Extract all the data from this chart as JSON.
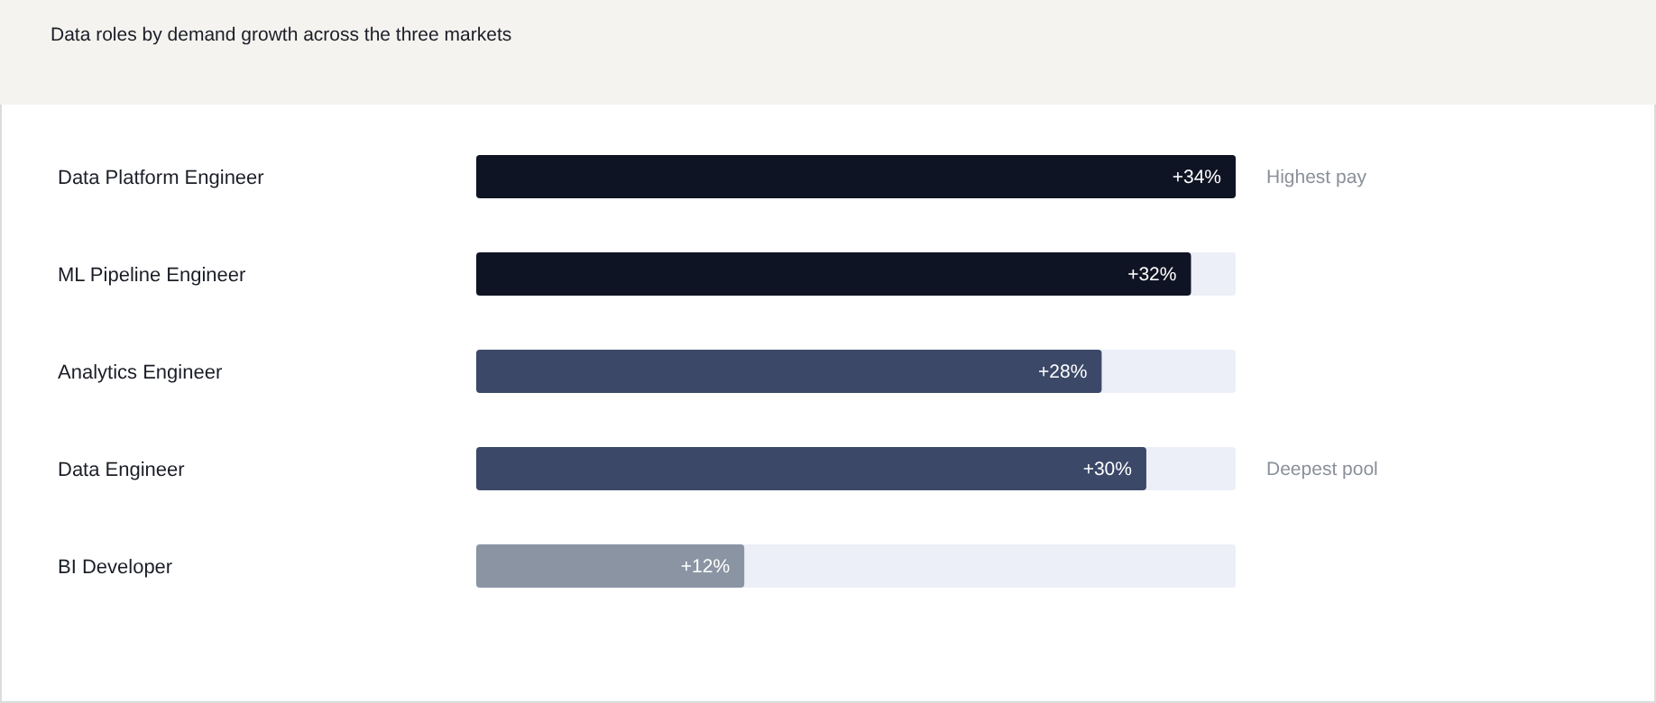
{
  "chart_data": {
    "type": "bar",
    "orientation": "horizontal",
    "title": "Data roles by demand growth across the three markets",
    "categories": [
      "Data Platform Engineer",
      "ML Pipeline Engineer",
      "Analytics Engineer",
      "Data Engineer",
      "BI Developer"
    ],
    "values": [
      34,
      32,
      28,
      30,
      12
    ],
    "colors": [
      "#0f1424",
      "#0f1424",
      "#3b4868",
      "#3b4868",
      "#8a94a3"
    ],
    "value_labels": [
      "+34%",
      "+32%",
      "+28%",
      "+30%",
      "+12%"
    ],
    "xlim": [
      0,
      34
    ],
    "annotations": [
      "Highest pay",
      "Deepest pool"
    ]
  }
}
